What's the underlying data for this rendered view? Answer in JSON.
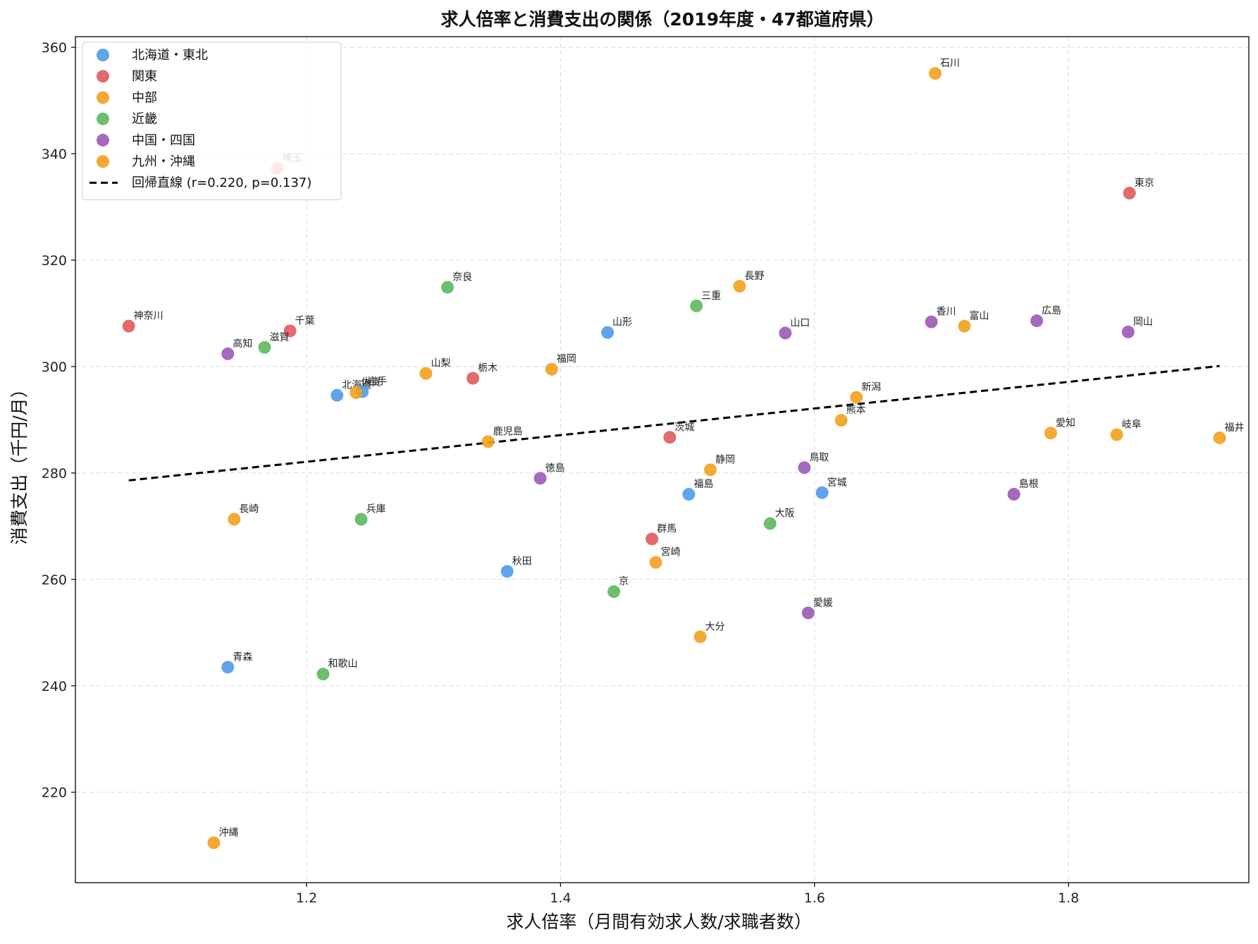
{
  "chart_data": {
    "type": "scatter",
    "title": "求人倍率と消費支出の関係（2019年度・47都道府県）",
    "xlabel": "求人倍率（月間有効求人数/求職者数）",
    "ylabel": "消費支出（千円/月）",
    "xlim": [
      1.018,
      1.942
    ],
    "ylim": [
      203,
      362
    ],
    "xticks": [
      "1.2",
      "1.4",
      "1.6",
      "1.8"
    ],
    "yticks": [
      "220",
      "240",
      "260",
      "280",
      "300",
      "320",
      "340",
      "360"
    ],
    "grid": true,
    "legend_position": "top-left",
    "series": [
      {
        "name": "北海道・東北",
        "color": "#4f9be9",
        "points": [
          {
            "label": "北海道",
            "x": 1.224,
            "y": 294.6
          },
          {
            "label": "岩手",
            "x": 1.244,
            "y": 295.3
          },
          {
            "label": "山形",
            "x": 1.437,
            "y": 306.4
          },
          {
            "label": "福島",
            "x": 1.501,
            "y": 276.0
          },
          {
            "label": "宮城",
            "x": 1.606,
            "y": 276.3
          },
          {
            "label": "秋田",
            "x": 1.358,
            "y": 261.5
          },
          {
            "label": "青森",
            "x": 1.138,
            "y": 243.5
          }
        ]
      },
      {
        "name": "関東",
        "color": "#e05a5d",
        "points": [
          {
            "label": "埼玉",
            "x": 1.177,
            "y": 337.3
          },
          {
            "label": "東京",
            "x": 1.848,
            "y": 332.6
          },
          {
            "label": "神奈川",
            "x": 1.06,
            "y": 307.6
          },
          {
            "label": "千葉",
            "x": 1.187,
            "y": 306.7
          },
          {
            "label": "栃木",
            "x": 1.331,
            "y": 297.8
          },
          {
            "label": "茨城",
            "x": 1.486,
            "y": 286.7
          },
          {
            "label": "群馬",
            "x": 1.472,
            "y": 267.6
          }
        ]
      },
      {
        "name": "中部",
        "color": "#f3a11c",
        "points": [
          {
            "label": "石川",
            "x": 1.695,
            "y": 355.1
          },
          {
            "label": "長野",
            "x": 1.541,
            "y": 315.1
          },
          {
            "label": "富山",
            "x": 1.718,
            "y": 307.6
          },
          {
            "label": "山梨",
            "x": 1.294,
            "y": 298.7
          },
          {
            "label": "新潟",
            "x": 1.633,
            "y": 294.2
          },
          {
            "label": "愛知",
            "x": 1.786,
            "y": 287.5
          },
          {
            "label": "岐阜",
            "x": 1.838,
            "y": 287.2
          },
          {
            "label": "福井",
            "x": 1.919,
            "y": 286.6
          },
          {
            "label": "静岡",
            "x": 1.518,
            "y": 280.6
          }
        ]
      },
      {
        "name": "近畿",
        "color": "#5db85f",
        "points": [
          {
            "label": "奈良",
            "x": 1.311,
            "y": 314.9
          },
          {
            "label": "三重",
            "x": 1.507,
            "y": 311.4
          },
          {
            "label": "滋賀",
            "x": 1.167,
            "y": 303.6
          },
          {
            "label": "兵庫",
            "x": 1.243,
            "y": 271.3
          },
          {
            "label": "大阪",
            "x": 1.565,
            "y": 270.5
          },
          {
            "label": "京",
            "x": 1.442,
            "y": 257.7
          },
          {
            "label": "和歌山",
            "x": 1.213,
            "y": 242.2
          }
        ]
      },
      {
        "name": "中国・四国",
        "color": "#9b59b6",
        "points": [
          {
            "label": "広島",
            "x": 1.775,
            "y": 308.6
          },
          {
            "label": "香川",
            "x": 1.692,
            "y": 308.4
          },
          {
            "label": "岡山",
            "x": 1.847,
            "y": 306.5
          },
          {
            "label": "山口",
            "x": 1.577,
            "y": 306.3
          },
          {
            "label": "高知",
            "x": 1.138,
            "y": 302.4
          },
          {
            "label": "鳥取",
            "x": 1.592,
            "y": 281.0
          },
          {
            "label": "徳島",
            "x": 1.384,
            "y": 279.0
          },
          {
            "label": "島根",
            "x": 1.757,
            "y": 276.0
          },
          {
            "label": "愛媛",
            "x": 1.595,
            "y": 253.7
          }
        ]
      },
      {
        "name": "九州・沖縄",
        "color": "#f3a11c",
        "points": [
          {
            "label": "福岡",
            "x": 1.393,
            "y": 299.5
          },
          {
            "label": "佐賀",
            "x": 1.239,
            "y": 295.1
          },
          {
            "label": "熊本",
            "x": 1.621,
            "y": 289.9
          },
          {
            "label": "鹿児島",
            "x": 1.343,
            "y": 285.9
          },
          {
            "label": "長崎",
            "x": 1.143,
            "y": 271.3
          },
          {
            "label": "宮崎",
            "x": 1.475,
            "y": 263.2
          },
          {
            "label": "大分",
            "x": 1.51,
            "y": 249.2
          },
          {
            "label": "沖縄",
            "x": 1.127,
            "y": 210.5
          }
        ]
      }
    ],
    "regression": {
      "label": "回帰直線 (r=0.220, p=0.137)",
      "color": "#000000",
      "x": [
        1.06,
        1.919
      ],
      "y": [
        278.6,
        300.1
      ]
    }
  }
}
